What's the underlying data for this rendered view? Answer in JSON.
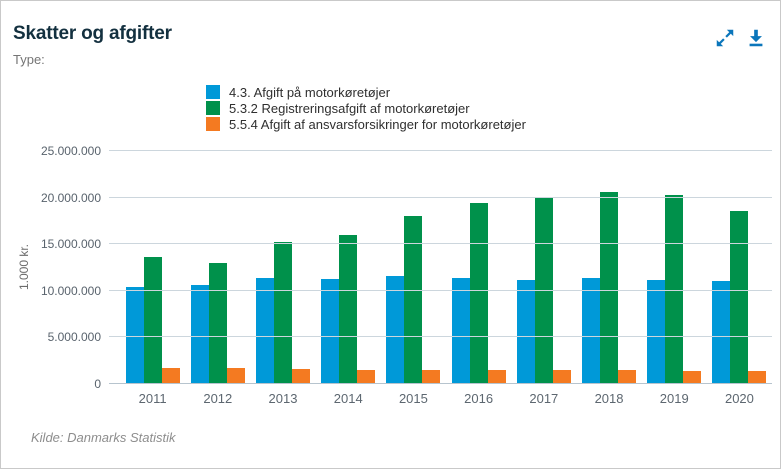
{
  "header": {
    "title": "Skatter og afgifter",
    "type_label": "Type:",
    "icons": [
      {
        "name": "expand-icon"
      },
      {
        "name": "download-icon"
      }
    ],
    "icon_color": "#0b76bb"
  },
  "chart_data": {
    "type": "bar",
    "title": "Skatter og afgifter",
    "categories": [
      "2011",
      "2012",
      "2013",
      "2014",
      "2015",
      "2016",
      "2017",
      "2018",
      "2019",
      "2020"
    ],
    "series": [
      {
        "name": "4.3. Afgift på motorkøretøjer",
        "color": "#0099d8",
        "values": [
          10400000,
          10600000,
          11400000,
          11300000,
          11600000,
          11400000,
          11200000,
          11400000,
          11200000,
          11100000
        ]
      },
      {
        "name": "5.3.2 Registreringsafgift af motorkøretøjer",
        "color": "#00914b",
        "values": [
          13600000,
          13000000,
          15200000,
          16000000,
          18000000,
          19400000,
          20000000,
          20600000,
          20300000,
          18600000
        ]
      },
      {
        "name": "5.5.4 Afgift af ansvarsforsikringer for motorkøretøjer",
        "color": "#f47a21",
        "values": [
          1700000,
          1700000,
          1600000,
          1500000,
          1500000,
          1500000,
          1500000,
          1500000,
          1400000,
          1400000
        ]
      }
    ],
    "xlabel": "",
    "ylabel": "1.000 kr.",
    "ylim": [
      0,
      25000000
    ],
    "ytick_step": 5000000,
    "ytick_labels": [
      "0",
      "5.000.000",
      "10.000.000",
      "15.000.000",
      "20.000.000",
      "25.000.000"
    ],
    "grid": true,
    "gridline_color": "#ccd6dd",
    "legend_position": "top"
  },
  "footer": {
    "source": "Kilde: Danmarks Statistik"
  }
}
